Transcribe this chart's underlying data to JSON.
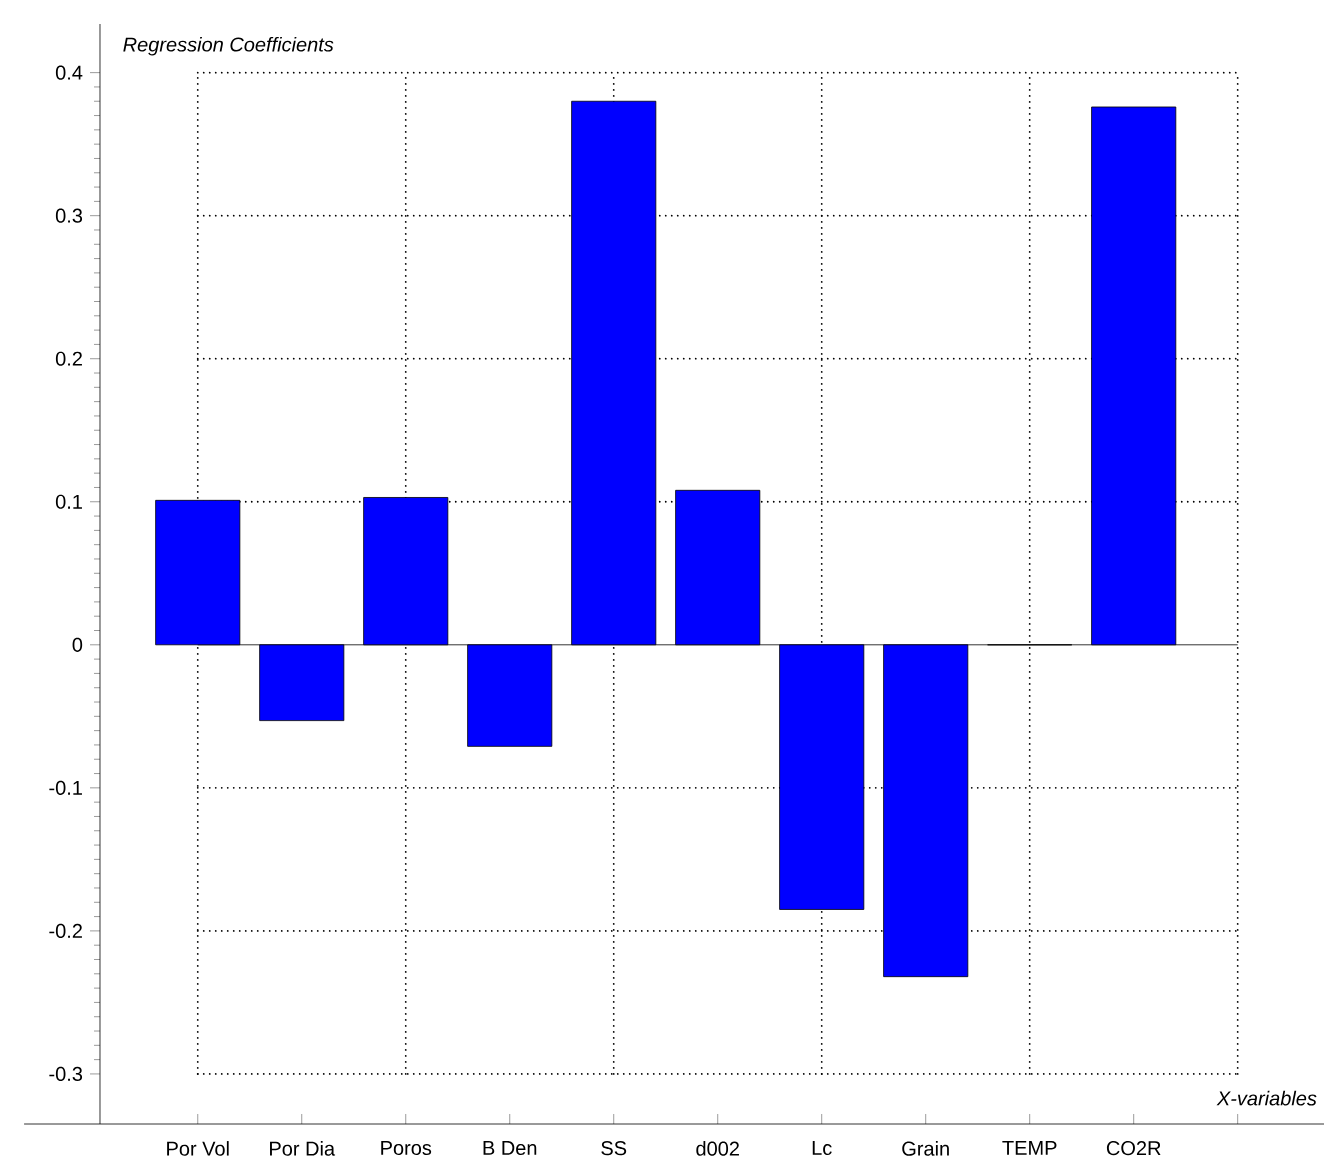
{
  "chart_data": {
    "type": "bar",
    "ylabel": "Regression Coefficients",
    "xlabel": "X-variables",
    "categories": [
      "Por Vol",
      "Por Dia",
      "Poros",
      "B Den",
      "SS",
      "d002",
      "Lc",
      "Grain",
      "TEMP",
      "CO2R"
    ],
    "values": [
      0.101,
      -0.053,
      0.103,
      -0.071,
      0.38,
      0.108,
      -0.185,
      -0.232,
      0.0,
      0.376
    ],
    "color": "#0000ff",
    "ylim": [
      -0.335,
      0.434
    ],
    "yticks": [
      -0.3,
      -0.2,
      -0.1,
      0,
      0.1,
      0.2,
      0.3,
      0.4
    ],
    "grid": true
  }
}
